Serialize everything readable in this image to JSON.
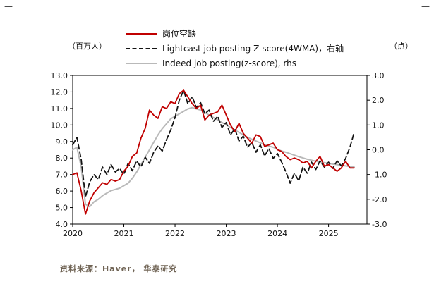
{
  "page": {
    "corner_mark_left": "—",
    "corner_mark_right": "—",
    "source_text": "资料来源：Haver， 华泰研究"
  },
  "chart_data": {
    "type": "line",
    "title": "",
    "left_axis_label": "（百万人）",
    "right_axis_label": "（点）",
    "xlim": [
      2020,
      2025.75
    ],
    "left_ylim": [
      4.0,
      13.0
    ],
    "right_ylim": [
      -3.0,
      3.0
    ],
    "left_ticks": [
      13,
      12,
      11,
      10,
      9,
      8,
      7,
      6,
      5,
      4
    ],
    "right_ticks": [
      3,
      2,
      1,
      0,
      -1,
      -2,
      -3
    ],
    "x_ticks": [
      2020,
      2021,
      2022,
      2023,
      2024,
      2025
    ],
    "grid": false,
    "legend_position": "top",
    "x": [
      2020.0,
      2020.083,
      2020.167,
      2020.25,
      2020.333,
      2020.417,
      2020.5,
      2020.583,
      2020.667,
      2020.75,
      2020.833,
      2020.917,
      2021.0,
      2021.083,
      2021.167,
      2021.25,
      2021.333,
      2021.417,
      2021.5,
      2021.583,
      2021.667,
      2021.75,
      2021.833,
      2021.917,
      2022.0,
      2022.083,
      2022.167,
      2022.25,
      2022.333,
      2022.417,
      2022.5,
      2022.583,
      2022.667,
      2022.75,
      2022.833,
      2022.917,
      2023.0,
      2023.083,
      2023.167,
      2023.25,
      2023.333,
      2023.417,
      2023.5,
      2023.583,
      2023.667,
      2023.75,
      2023.833,
      2023.917,
      2024.0,
      2024.083,
      2024.167,
      2024.25,
      2024.333,
      2024.417,
      2024.5,
      2024.583,
      2024.667,
      2024.75,
      2024.833,
      2024.917,
      2025.0,
      2025.083,
      2025.167,
      2025.25,
      2025.333,
      2025.417,
      2025.5
    ],
    "series": [
      {
        "name": "岗位空缺",
        "axis": "left",
        "color": "#c00000",
        "dash": "solid",
        "width": 1.8,
        "y": [
          7.0,
          7.1,
          6.0,
          4.6,
          5.4,
          5.9,
          6.2,
          6.5,
          6.4,
          6.7,
          6.6,
          6.7,
          7.2,
          7.5,
          8.1,
          8.3,
          9.2,
          9.8,
          10.9,
          10.6,
          10.4,
          11.1,
          11.0,
          11.4,
          11.3,
          11.9,
          12.1,
          11.7,
          11.3,
          11.0,
          11.2,
          10.3,
          10.6,
          10.7,
          10.8,
          11.2,
          10.6,
          10.0,
          9.6,
          10.1,
          9.5,
          9.2,
          8.9,
          9.4,
          9.3,
          8.7,
          8.8,
          8.9,
          8.5,
          8.4,
          8.1,
          7.9,
          8.0,
          7.9,
          7.7,
          7.8,
          7.4,
          7.8,
          8.1,
          7.5,
          7.6,
          7.4,
          7.2,
          7.4,
          7.8,
          7.4,
          7.4
        ]
      },
      {
        "name": "Lightcast job posting Z-score(4WMA)，右轴",
        "axis": "right",
        "color": "#141414",
        "dash": "dashed",
        "width": 1.8,
        "y": [
          0.2,
          0.5,
          -0.4,
          -1.9,
          -1.3,
          -1.0,
          -1.2,
          -0.7,
          -1.0,
          -0.6,
          -0.9,
          -0.75,
          -1.0,
          -0.55,
          -0.85,
          -0.45,
          -0.7,
          -0.3,
          -0.55,
          -0.1,
          0.15,
          -0.05,
          0.4,
          0.8,
          1.3,
          2.0,
          2.4,
          1.85,
          2.15,
          1.7,
          1.9,
          1.45,
          1.6,
          1.15,
          1.35,
          0.9,
          1.1,
          0.6,
          0.85,
          0.35,
          0.55,
          0.1,
          0.3,
          -0.1,
          0.2,
          -0.25,
          0.05,
          -0.35,
          -0.15,
          -0.5,
          -0.9,
          -1.35,
          -0.95,
          -1.25,
          -0.7,
          -0.95,
          -0.5,
          -0.8,
          -0.45,
          -0.7,
          -0.5,
          -0.75,
          -0.45,
          -0.65,
          -0.35,
          0.1,
          0.7
        ]
      },
      {
        "name": "Indeed job posting(z-score), rhs",
        "axis": "right",
        "color": "#b9b9b9",
        "dash": "solid",
        "width": 2,
        "y": [
          0.0,
          0.1,
          -0.7,
          -2.2,
          -2.3,
          -2.1,
          -2.0,
          -1.85,
          -1.75,
          -1.65,
          -1.6,
          -1.55,
          -1.45,
          -1.35,
          -1.15,
          -0.9,
          -0.6,
          -0.3,
          0.0,
          0.3,
          0.6,
          0.85,
          1.05,
          1.25,
          1.35,
          1.45,
          1.55,
          1.65,
          1.7,
          1.65,
          1.6,
          1.5,
          1.4,
          1.3,
          1.2,
          1.1,
          1.0,
          0.9,
          0.8,
          0.7,
          0.6,
          0.5,
          0.42,
          0.35,
          0.28,
          0.2,
          0.15,
          0.1,
          0.02,
          -0.05,
          -0.1,
          -0.16,
          -0.22,
          -0.28,
          -0.33,
          -0.38,
          -0.42,
          -0.46,
          -0.5,
          -0.52,
          -0.55,
          -0.58,
          -0.6,
          -0.63,
          -0.65,
          -0.68,
          -0.7
        ]
      }
    ]
  }
}
